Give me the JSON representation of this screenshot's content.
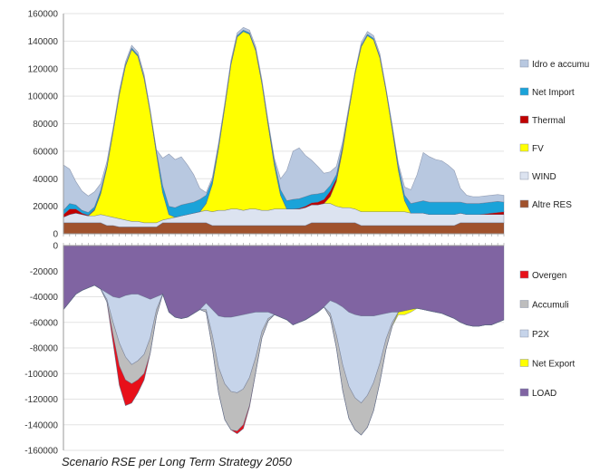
{
  "caption": "Scenario RSE per Long Term Strategy 2050",
  "chart_data": [
    {
      "type": "area",
      "stacked": true,
      "ylim": [
        0,
        160000
      ],
      "yticks": [
        0,
        20000,
        40000,
        60000,
        80000,
        100000,
        120000,
        140000,
        160000
      ],
      "ytick_labels": [
        "0",
        "20000",
        "40000",
        "60000",
        "80000",
        "100000",
        "120000",
        "140000",
        "160000"
      ],
      "x": [
        1,
        2,
        3,
        4,
        5,
        6,
        7,
        8,
        9,
        10,
        11,
        12,
        13,
        14,
        15,
        16,
        17,
        18,
        19,
        20,
        21,
        22,
        23,
        24,
        25,
        26,
        27,
        28,
        29,
        30,
        31,
        32,
        33,
        34,
        35,
        36,
        37,
        38,
        39,
        40,
        41,
        42,
        43,
        44,
        45,
        46,
        47,
        48,
        49,
        50,
        51,
        52,
        53,
        54,
        55,
        56,
        57,
        58,
        59,
        60,
        61,
        62,
        63,
        64,
        65,
        66,
        67,
        68,
        69,
        70,
        71,
        72
      ],
      "legend_position": "right",
      "series": [
        {
          "name": "Altre RES",
          "color": "#a0522d",
          "values": [
            8000,
            8000,
            8000,
            8000,
            8000,
            8000,
            8000,
            6000,
            6000,
            5000,
            5000,
            5000,
            5000,
            5000,
            5000,
            5000,
            8000,
            8000,
            8000,
            8000,
            8000,
            8000,
            8000,
            8000,
            6000,
            6000,
            6000,
            6000,
            6000,
            6000,
            6000,
            6000,
            6000,
            6000,
            6000,
            6000,
            6000,
            6000,
            6000,
            6000,
            8000,
            8000,
            8000,
            8000,
            8000,
            8000,
            8000,
            8000,
            6000,
            6000,
            6000,
            6000,
            6000,
            6000,
            6000,
            6000,
            6000,
            6000,
            6000,
            6000,
            6000,
            6000,
            6000,
            6000,
            8000,
            8000,
            8000,
            8000,
            8000,
            8000,
            8000,
            8000
          ]
        },
        {
          "name": "WIND",
          "color": "#dce3f0",
          "values": [
            4000,
            6000,
            7000,
            6000,
            5000,
            5000,
            6000,
            7000,
            6000,
            6000,
            5000,
            4000,
            4000,
            3000,
            3000,
            3000,
            2000,
            3000,
            4000,
            5000,
            6000,
            7000,
            8000,
            9000,
            10000,
            11000,
            11000,
            12000,
            12000,
            11000,
            12000,
            12000,
            11000,
            11000,
            12000,
            12000,
            12000,
            12000,
            12000,
            13000,
            13000,
            13000,
            14000,
            14000,
            12000,
            11000,
            11000,
            10000,
            10000,
            10000,
            10000,
            10000,
            10000,
            10000,
            10000,
            10000,
            9000,
            9000,
            9000,
            8000,
            8000,
            8000,
            8000,
            8000,
            7000,
            6000,
            6000,
            6000,
            6000,
            6000,
            6000,
            6000
          ]
        },
        {
          "name": "FV",
          "color": "#ffff00",
          "values": [
            0,
            0,
            0,
            0,
            0,
            4000,
            15000,
            35000,
            62000,
            90000,
            112000,
            125000,
            120000,
            105000,
            80000,
            50000,
            20000,
            3000,
            0,
            0,
            0,
            0,
            0,
            5000,
            20000,
            45000,
            75000,
            105000,
            125000,
            130000,
            127000,
            115000,
            92000,
            62000,
            32000,
            10000,
            0,
            0,
            0,
            0,
            0,
            0,
            0,
            5000,
            18000,
            42000,
            70000,
            98000,
            120000,
            128000,
            125000,
            112000,
            88000,
            60000,
            30000,
            8000,
            0,
            0,
            0,
            0,
            0,
            0,
            0,
            0,
            0,
            0,
            0,
            0,
            0,
            0,
            0,
            0
          ]
        },
        {
          "name": "Thermal",
          "color": "#c00000",
          "values": [
            2000,
            4000,
            3000,
            1000,
            500,
            500,
            500,
            0,
            0,
            0,
            0,
            0,
            0,
            0,
            0,
            0,
            0,
            0,
            0,
            0,
            0,
            0,
            0,
            0,
            0,
            0,
            0,
            0,
            0,
            0,
            0,
            0,
            0,
            0,
            0,
            0,
            0,
            0,
            500,
            1000,
            1500,
            2000,
            3000,
            4000,
            2000,
            1000,
            500,
            0,
            0,
            0,
            0,
            0,
            0,
            0,
            0,
            0,
            0,
            0,
            0,
            0,
            0,
            0,
            0,
            0,
            0,
            0,
            0,
            0,
            500,
            1000,
            1500,
            2000
          ]
        },
        {
          "name": "Net Import",
          "color": "#1aa3d9",
          "values": [
            3000,
            4000,
            3000,
            2000,
            2000,
            2000,
            2000,
            1500,
            1000,
            1000,
            1000,
            1000,
            1000,
            1000,
            1000,
            2000,
            5000,
            6000,
            7000,
            8000,
            8000,
            8000,
            9000,
            6000,
            3000,
            2000,
            1000,
            1000,
            1000,
            1000,
            1000,
            1000,
            1000,
            2000,
            3000,
            4000,
            6000,
            7000,
            7000,
            7000,
            6000,
            6000,
            5000,
            4000,
            3000,
            2000,
            1000,
            1000,
            1000,
            1000,
            1000,
            1000,
            1000,
            2000,
            3000,
            4000,
            7000,
            8000,
            9000,
            9000,
            9000,
            9000,
            9000,
            9000,
            8000,
            8000,
            8000,
            8000,
            8000,
            8000,
            8000,
            7000
          ]
        },
        {
          "name": "Idro e accumuli",
          "color": "#b8c8e0",
          "values": [
            33000,
            25000,
            17000,
            14000,
            12000,
            11000,
            5000,
            3000,
            2000,
            2000,
            2000,
            2000,
            2000,
            2000,
            1000,
            1000,
            20000,
            38000,
            35000,
            35000,
            28000,
            20000,
            8000,
            2000,
            2000,
            2000,
            2000,
            2000,
            2000,
            2000,
            2000,
            2000,
            2000,
            1000,
            2000,
            8000,
            22000,
            35000,
            37000,
            30000,
            25000,
            20000,
            14000,
            10000,
            6000,
            3000,
            2000,
            1000,
            2000,
            2000,
            2000,
            2000,
            1000,
            1000,
            2000,
            6000,
            10000,
            20000,
            35000,
            33000,
            31000,
            30000,
            27000,
            23000,
            10000,
            6000,
            5000,
            5000,
            5000,
            5000,
            5000,
            5000
          ]
        }
      ]
    },
    {
      "type": "area",
      "stacked": true,
      "ylim": [
        -160000,
        0
      ],
      "yticks": [
        0,
        -20000,
        -40000,
        -60000,
        -80000,
        -100000,
        -120000,
        -140000,
        -160000
      ],
      "ytick_labels": [
        "0",
        "-20000",
        "-40000",
        "-60000",
        "-80000",
        "-100000",
        "-120000",
        "-140000",
        "-160000"
      ],
      "x": [
        1,
        2,
        3,
        4,
        5,
        6,
        7,
        8,
        9,
        10,
        11,
        12,
        13,
        14,
        15,
        16,
        17,
        18,
        19,
        20,
        21,
        22,
        23,
        24,
        25,
        26,
        27,
        28,
        29,
        30,
        31,
        32,
        33,
        34,
        35,
        36,
        37,
        38,
        39,
        40,
        41,
        42,
        43,
        44,
        45,
        46,
        47,
        48,
        49,
        50,
        51,
        52,
        53,
        54,
        55,
        56,
        57,
        58,
        59,
        60,
        61,
        62,
        63,
        64,
        65,
        66,
        67,
        68,
        69,
        70,
        71,
        72
      ],
      "legend_position": "right",
      "series": [
        {
          "name": "LOAD",
          "color": "#8064a2",
          "values": [
            -50000,
            -44000,
            -38000,
            -35000,
            -33000,
            -31000,
            -34000,
            -37000,
            -40000,
            -41000,
            -39000,
            -38000,
            -38000,
            -40000,
            -42000,
            -40000,
            -38000,
            -52000,
            -56000,
            -57000,
            -56000,
            -53000,
            -50000,
            -45000,
            -50000,
            -55000,
            -56000,
            -56000,
            -55000,
            -54000,
            -53000,
            -52000,
            -52000,
            -52000,
            -54000,
            -56000,
            -58000,
            -62000,
            -60000,
            -58000,
            -55000,
            -52000,
            -48000,
            -43000,
            -45000,
            -48000,
            -52000,
            -54000,
            -55000,
            -55000,
            -55000,
            -54000,
            -53000,
            -52000,
            -52000,
            -51000,
            -50000,
            -49000,
            -50000,
            -51000,
            -52000,
            -53000,
            -55000,
            -57000,
            -60000,
            -62000,
            -63000,
            -63000,
            -62000,
            -62000,
            -60000,
            -58000
          ]
        },
        {
          "name": "P2X",
          "color": "#c6d4ea",
          "values": [
            0,
            0,
            0,
            0,
            0,
            0,
            0,
            -5000,
            -20000,
            -35000,
            -48000,
            -55000,
            -52000,
            -45000,
            -30000,
            -10000,
            0,
            0,
            0,
            0,
            0,
            0,
            0,
            -5000,
            -20000,
            -40000,
            -52000,
            -58000,
            -60000,
            -58000,
            -50000,
            -35000,
            -15000,
            -5000,
            0,
            0,
            0,
            0,
            0,
            0,
            0,
            0,
            0,
            -10000,
            -25000,
            -45000,
            -58000,
            -65000,
            -68000,
            -62000,
            -52000,
            -38000,
            -20000,
            -8000,
            0,
            0,
            0,
            0,
            0,
            0,
            0,
            0,
            0,
            0,
            0,
            0,
            0,
            0,
            0,
            0,
            0,
            0
          ]
        },
        {
          "name": "Accumuli",
          "color": "#bdbdbd",
          "values": [
            0,
            0,
            0,
            0,
            0,
            0,
            0,
            -2000,
            -10000,
            -18000,
            -18000,
            -15000,
            -15000,
            -15000,
            -12000,
            -5000,
            0,
            0,
            0,
            0,
            0,
            0,
            0,
            -2000,
            -10000,
            -20000,
            -28000,
            -30000,
            -30000,
            -28000,
            -22000,
            -12000,
            -5000,
            -2000,
            0,
            0,
            0,
            0,
            0,
            0,
            0,
            0,
            0,
            -3000,
            -10000,
            -20000,
            -25000,
            -25000,
            -25000,
            -25000,
            -22000,
            -15000,
            -8000,
            -3000,
            0,
            0,
            0,
            0,
            0,
            0,
            0,
            0,
            0,
            0,
            0,
            0,
            0,
            0,
            0,
            0,
            0,
            0
          ]
        },
        {
          "name": "Overgen",
          "color": "#e8101a",
          "values": [
            0,
            0,
            0,
            0,
            0,
            0,
            0,
            0,
            -6000,
            -15000,
            -20000,
            -15000,
            -10000,
            -5000,
            0,
            0,
            0,
            0,
            0,
            0,
            0,
            0,
            0,
            0,
            0,
            0,
            0,
            0,
            -2000,
            -3000,
            -1000,
            0,
            0,
            0,
            0,
            0,
            0,
            0,
            0,
            0,
            0,
            0,
            0,
            0,
            0,
            0,
            0,
            0,
            0,
            0,
            0,
            0,
            0,
            0,
            0,
            0,
            0,
            0,
            0,
            0,
            0,
            0,
            0,
            0,
            0,
            0,
            0,
            0,
            0,
            0,
            0,
            0
          ]
        },
        {
          "name": "Net Export",
          "color": "#ffff00",
          "values": [
            0,
            0,
            0,
            0,
            0,
            0,
            0,
            0,
            0,
            0,
            0,
            0,
            0,
            0,
            0,
            0,
            0,
            0,
            0,
            0,
            0,
            0,
            0,
            0,
            0,
            0,
            0,
            0,
            0,
            0,
            0,
            0,
            0,
            0,
            0,
            0,
            0,
            0,
            0,
            0,
            0,
            0,
            0,
            0,
            0,
            0,
            0,
            0,
            0,
            0,
            0,
            0,
            0,
            0,
            -2000,
            -3000,
            -2000,
            0,
            0,
            0,
            0,
            0,
            0,
            0,
            0,
            0,
            0,
            0,
            0,
            0,
            0,
            0
          ]
        }
      ],
      "legend_order": [
        "Overgen",
        "Accumuli",
        "P2X",
        "Net Export",
        "LOAD"
      ]
    }
  ]
}
